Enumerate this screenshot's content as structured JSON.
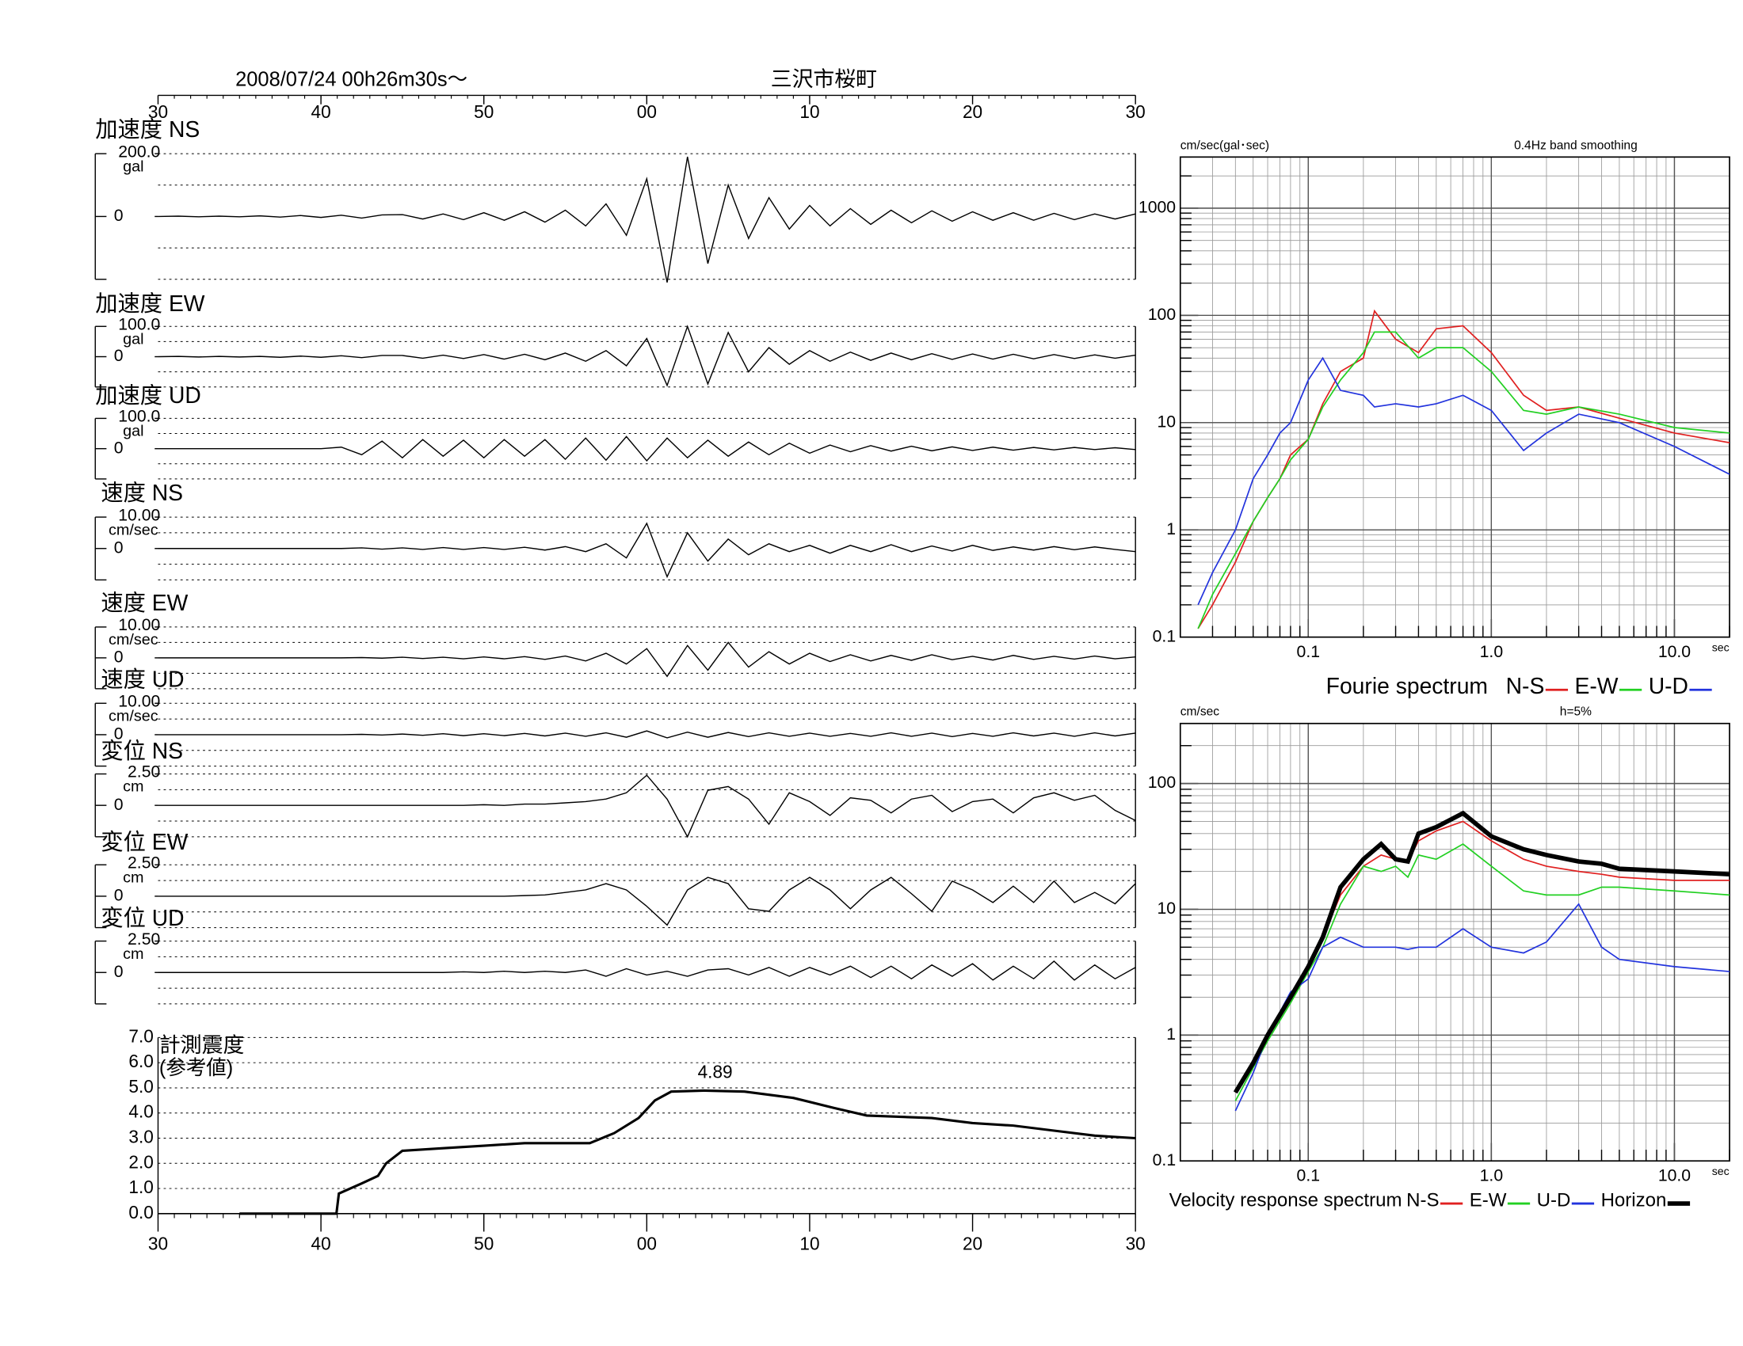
{
  "header": {
    "datetime": "2008/07/24  00h26m30s〜",
    "station": "三沢市桜町"
  },
  "chart_data": [
    {
      "type": "traces",
      "x": [
        0,
        1.25,
        2.5,
        3.75,
        5,
        6.25,
        7.5,
        8.75,
        10,
        11.25,
        12.5,
        13.75,
        15,
        16.25,
        17.5,
        18.75,
        20,
        21.25,
        22.5,
        23.75,
        25,
        26.25,
        27.5,
        28.75,
        30,
        31.25,
        32.5,
        33.75,
        35,
        36.25,
        37.5,
        38.75,
        40,
        41.25,
        42.5,
        43.75,
        45,
        46.25,
        47.5,
        48.75,
        50,
        51.25,
        52.5,
        53.75,
        55,
        56.25,
        57.5,
        58.75,
        60
      ],
      "xlim": [
        0,
        60
      ],
      "xticks": [
        {
          "value": 0,
          "label": "30"
        },
        {
          "value": 10,
          "label": "40"
        },
        {
          "value": 20,
          "label": "50"
        },
        {
          "value": 30,
          "label": "00"
        },
        {
          "value": 40,
          "label": "10"
        },
        {
          "value": 50,
          "label": "20"
        },
        {
          "value": 60,
          "label": "30"
        }
      ],
      "color": "#000000",
      "panels": [
        {
          "title": "加速度 NS",
          "unit": "gal",
          "ylim": [
            -200,
            200
          ],
          "yticks": [
            {
              "value": 200,
              "label": "200.0"
            },
            0
          ],
          "values": [
            0,
            1,
            -1,
            1,
            -1,
            2,
            -2,
            3,
            -3,
            4,
            -5,
            5,
            6,
            -8,
            8,
            -10,
            12,
            -12,
            15,
            -18,
            20,
            -30,
            40,
            -60,
            120,
            -210,
            190,
            -150,
            100,
            -70,
            60,
            -40,
            35,
            -30,
            25,
            -25,
            20,
            -20,
            18,
            -15,
            15,
            -12,
            12,
            -12,
            10,
            -10,
            8,
            -8,
            8
          ]
        },
        {
          "title": "加速度 EW",
          "unit": "gal",
          "ylim": [
            -100,
            100
          ],
          "yticks": [
            {
              "value": 100,
              "label": "100.0"
            },
            0
          ],
          "values": [
            0,
            1,
            -1,
            1,
            -1,
            1,
            -2,
            2,
            -2,
            3,
            -3,
            4,
            4,
            -5,
            5,
            -6,
            7,
            -8,
            8,
            -10,
            12,
            -15,
            20,
            -30,
            60,
            -95,
            100,
            -90,
            80,
            -50,
            30,
            -25,
            20,
            -15,
            15,
            -12,
            12,
            -10,
            10,
            -9,
            9,
            -8,
            8,
            -7,
            7,
            -6,
            6,
            -5,
            5
          ]
        },
        {
          "title": "加速度 UD",
          "unit": "gal",
          "ylim": [
            -100,
            100
          ],
          "yticks": [
            {
              "value": 100,
              "label": "100.0"
            },
            0
          ],
          "values": [
            0,
            0,
            0,
            0,
            0,
            0,
            0,
            0,
            0,
            5,
            -20,
            25,
            -30,
            30,
            -25,
            28,
            -30,
            30,
            -25,
            30,
            -35,
            35,
            -38,
            40,
            -40,
            35,
            -30,
            28,
            -25,
            22,
            -20,
            18,
            -15,
            12,
            -10,
            10,
            -8,
            8,
            -7,
            6,
            -6,
            5,
            -5,
            4,
            -4,
            4,
            -3,
            3,
            -3
          ]
        },
        {
          "title": "速度 NS",
          "unit": "cm/sec",
          "ylim": [
            -10,
            10
          ],
          "yticks": [
            {
              "value": 10,
              "label": "10.00"
            },
            0
          ],
          "values": [
            0,
            0,
            0,
            0,
            0,
            0,
            0,
            0,
            0,
            0,
            0.2,
            -0.2,
            0.2,
            -0.3,
            0.3,
            -0.3,
            0.3,
            -0.3,
            0.4,
            -0.5,
            0.6,
            -1,
            1.5,
            -3,
            8,
            -9,
            5,
            -4,
            3,
            -2,
            1.5,
            -1,
            1,
            -1.5,
            1,
            -1,
            1.2,
            -1,
            0.8,
            -0.8,
            1,
            -0.6,
            0.5,
            -0.5,
            0.6,
            -0.4,
            0.5,
            -0.3,
            -1
          ]
        },
        {
          "title": "速度 EW",
          "unit": "cm/sec",
          "ylim": [
            -10,
            10
          ],
          "yticks": [
            {
              "value": 10,
              "label": "10.00"
            },
            0
          ],
          "values": [
            0,
            0,
            0,
            0,
            0,
            0,
            0,
            0,
            0,
            0,
            0.1,
            -0.1,
            0.2,
            -0.2,
            0.2,
            -0.3,
            0.3,
            -0.3,
            0.4,
            -0.5,
            0.6,
            -1,
            1.5,
            -2,
            3,
            -6,
            4,
            -4,
            5,
            -3,
            2,
            -2,
            1.5,
            -1.2,
            1,
            -1,
            0.8,
            -0.8,
            1,
            -0.6,
            0.5,
            -0.7,
            0.8,
            -0.5,
            0.5,
            -0.4,
            0.6,
            -0.3,
            0.3
          ]
        },
        {
          "title": "速度 UD",
          "unit": "cm/sec",
          "ylim": [
            -10,
            10
          ],
          "yticks": [
            {
              "value": 10,
              "label": "10.00"
            },
            0
          ],
          "values": [
            0,
            0,
            0,
            0,
            0,
            0,
            0,
            0,
            0,
            0,
            0.1,
            -0.1,
            0.2,
            -0.2,
            0.3,
            -0.3,
            0.3,
            -0.3,
            0.4,
            -0.4,
            0.5,
            -0.5,
            0.6,
            -0.8,
            1.2,
            -1,
            0.8,
            -0.8,
            0.7,
            -0.6,
            0.6,
            -0.5,
            0.5,
            -0.5,
            0.4,
            -0.5,
            0.6,
            -0.5,
            0.5,
            -0.6,
            0.4,
            -0.5,
            0.6,
            -0.4,
            0.5,
            -0.5,
            0.6,
            -0.4,
            0.5
          ]
        },
        {
          "title": "変位 NS",
          "unit": "cm",
          "ylim": [
            -2.5,
            2.5
          ],
          "yticks": [
            {
              "value": 2.5,
              "label": "2.50"
            },
            0
          ],
          "values": [
            0,
            0,
            0,
            0,
            0,
            0,
            0,
            0,
            0,
            0,
            0,
            0,
            0,
            0,
            0,
            0,
            0.05,
            0,
            0.1,
            0.1,
            0.2,
            0.3,
            0.5,
            1.0,
            2.4,
            0.5,
            -2.5,
            1.2,
            1.5,
            0.5,
            -1.5,
            1.0,
            0.3,
            -0.8,
            0.6,
            0.4,
            -0.6,
            0.5,
            0.8,
            -0.5,
            0.3,
            0.5,
            -0.6,
            0.6,
            1.0,
            0.4,
            0.8,
            -0.4,
            -1.2
          ]
        },
        {
          "title": "変位 EW",
          "unit": "cm",
          "ylim": [
            -2.5,
            2.5
          ],
          "yticks": [
            {
              "value": 2.5,
              "label": "2.50"
            },
            0
          ],
          "values": [
            0,
            0,
            0,
            0,
            0,
            0,
            0,
            0,
            0,
            0,
            0,
            0,
            0,
            0,
            0,
            0,
            0,
            0,
            0.05,
            0.1,
            0.3,
            0.5,
            1.0,
            0.5,
            -0.8,
            -2.3,
            0.5,
            1.5,
            1.0,
            -1.0,
            -1.2,
            0.5,
            1.5,
            0.5,
            -1.0,
            0.5,
            1.5,
            0.2,
            -1.2,
            1.2,
            0.5,
            -0.5,
            0.8,
            -0.5,
            1.2,
            -0.5,
            0.3,
            -0.6,
            1.0
          ]
        },
        {
          "title": "変位 UD",
          "unit": "cm",
          "ylim": [
            -2.5,
            2.5
          ],
          "yticks": [
            {
              "value": 2.5,
              "label": "2.50"
            },
            0
          ],
          "values": [
            0,
            0,
            0,
            0,
            0,
            0,
            0,
            0,
            0,
            0,
            0,
            0,
            0,
            0,
            0,
            0.05,
            0,
            0.1,
            0,
            0.1,
            0,
            0.2,
            -0.3,
            0.3,
            -0.2,
            0.1,
            -0.3,
            0.2,
            0.3,
            -0.2,
            0.4,
            -0.3,
            0.4,
            -0.2,
            0.5,
            -0.4,
            0.5,
            -0.5,
            0.6,
            -0.3,
            0.7,
            -0.6,
            0.5,
            -0.5,
            0.9,
            -0.6,
            0.6,
            -0.5,
            0.4
          ]
        }
      ]
    },
    {
      "type": "line",
      "title": "計測震度",
      "subtitle": "(参考値)",
      "x": [
        5,
        10.95,
        11.1,
        12.5,
        13.5,
        14,
        15,
        17.5,
        20,
        22.5,
        25,
        26.5,
        28,
        29.5,
        30.5,
        31.5,
        33.5,
        36,
        39,
        41.5,
        43.5,
        47.5,
        50,
        52.5,
        55,
        57.5,
        60
      ],
      "values": [
        0,
        0,
        0.8,
        1.2,
        1.5,
        2.0,
        2.5,
        2.6,
        2.7,
        2.8,
        2.8,
        2.8,
        3.2,
        3.8,
        4.5,
        4.85,
        4.89,
        4.85,
        4.6,
        4.2,
        3.9,
        3.8,
        3.6,
        3.5,
        3.3,
        3.1,
        3.0
      ],
      "color": "#000000",
      "annotation": "4.89",
      "xlim": [
        0,
        60
      ],
      "xticks": [
        {
          "value": 0,
          "label": "30"
        },
        {
          "value": 10,
          "label": "40"
        },
        {
          "value": 20,
          "label": "50"
        },
        {
          "value": 30,
          "label": "00"
        },
        {
          "value": 40,
          "label": "10"
        },
        {
          "value": 50,
          "label": "20"
        },
        {
          "value": 60,
          "label": "30"
        }
      ],
      "ylim": [
        0,
        7
      ],
      "yticks": [
        {
          "value": 0,
          "label": "0.0"
        },
        {
          "value": 1,
          "label": "1.0"
        },
        {
          "value": 2,
          "label": "2.0"
        },
        {
          "value": 3,
          "label": "3.0"
        },
        {
          "value": 4,
          "label": "4.0"
        },
        {
          "value": 5,
          "label": "5.0"
        },
        {
          "value": 6,
          "label": "6.0"
        },
        {
          "value": 7,
          "label": "7.0"
        }
      ],
      "grid": true
    },
    {
      "type": "loglog",
      "title": "Fourie spectrum",
      "ylabel": "cm/sec(gal･sec)",
      "note": "0.4Hz band smoothing",
      "xlabel": "sec",
      "x": [
        0.025,
        0.03,
        0.04,
        0.05,
        0.06,
        0.07,
        0.08,
        0.1,
        0.12,
        0.15,
        0.2,
        0.23,
        0.3,
        0.4,
        0.5,
        0.7,
        1.0,
        1.5,
        2,
        3,
        5,
        10,
        20
      ],
      "series": [
        {
          "name": "N-S",
          "color": "#e02020",
          "values": [
            0.12,
            0.2,
            0.5,
            1.2,
            2,
            3,
            5,
            7,
            15,
            30,
            40,
            110,
            60,
            45,
            75,
            80,
            45,
            18,
            13,
            14,
            11,
            8,
            6.5
          ]
        },
        {
          "name": "E-W",
          "color": "#22d022",
          "values": [
            0.12,
            0.25,
            0.6,
            1.2,
            2,
            3,
            4.5,
            7,
            14,
            25,
            45,
            70,
            70,
            40,
            50,
            50,
            30,
            13,
            12,
            14,
            12,
            9,
            8
          ]
        },
        {
          "name": "U-D",
          "color": "#2233dd",
          "values": [
            0.2,
            0.4,
            1,
            3,
            5,
            8,
            10,
            25,
            40,
            20,
            18,
            14,
            15,
            14,
            15,
            18,
            13,
            5.5,
            8,
            12,
            10,
            6,
            3.3
          ]
        }
      ],
      "xscale": "log",
      "yscale": "log",
      "xlim": [
        0.02,
        20
      ],
      "ylim": [
        0.1,
        3000
      ],
      "xticks": [
        0.1,
        {
          "value": 1,
          "label": "1.0"
        },
        {
          "value": 10,
          "label": "10.0"
        }
      ],
      "yticks": [
        0.1,
        1,
        10,
        100,
        1000
      ],
      "grid": true
    },
    {
      "type": "loglog",
      "title": "Velocity response spectrum",
      "ylabel": "cm/sec",
      "note": "h=5%",
      "xlabel": "sec",
      "x": [
        0.04,
        0.05,
        0.06,
        0.08,
        0.1,
        0.12,
        0.15,
        0.2,
        0.25,
        0.3,
        0.35,
        0.4,
        0.5,
        0.7,
        1.0,
        1.5,
        2,
        3,
        4,
        5,
        10,
        20
      ],
      "series": [
        {
          "name": "N-S",
          "color": "#e02020",
          "values": [
            0.35,
            0.6,
            1.0,
            2.0,
            3.5,
            6,
            13,
            22,
            27,
            25,
            24,
            35,
            42,
            50,
            35,
            25,
            22,
            20,
            19,
            18,
            17,
            17
          ]
        },
        {
          "name": "E-W",
          "color": "#22d022",
          "values": [
            0.3,
            0.55,
            0.9,
            1.8,
            3.2,
            5,
            11,
            22,
            20,
            22,
            18,
            27,
            25,
            33,
            22,
            14,
            13,
            13,
            15,
            15,
            14,
            13
          ]
        },
        {
          "name": "U-D",
          "color": "#2233dd",
          "values": [
            0.25,
            0.5,
            1.0,
            2.2,
            2.8,
            5,
            6,
            5,
            5,
            5,
            4.8,
            5,
            5,
            7,
            5,
            4.5,
            5.5,
            11,
            5,
            4,
            3.5,
            3.2
          ]
        },
        {
          "name": "Horizon",
          "color": "#000000",
          "line_width": 4,
          "values": [
            0.35,
            0.6,
            1.0,
            2.0,
            3.5,
            6,
            15,
            25,
            33,
            25,
            24,
            40,
            45,
            58,
            38,
            30,
            27,
            24,
            23,
            21,
            20,
            19
          ]
        }
      ],
      "xscale": "log",
      "yscale": "log",
      "xlim": [
        0.02,
        20
      ],
      "ylim": [
        0.1,
        300
      ],
      "xticks": [
        0.1,
        {
          "value": 1,
          "label": "1.0"
        },
        {
          "value": 10,
          "label": "10.0"
        }
      ],
      "yticks": [
        0.1,
        1,
        10,
        100
      ],
      "grid": true
    }
  ]
}
